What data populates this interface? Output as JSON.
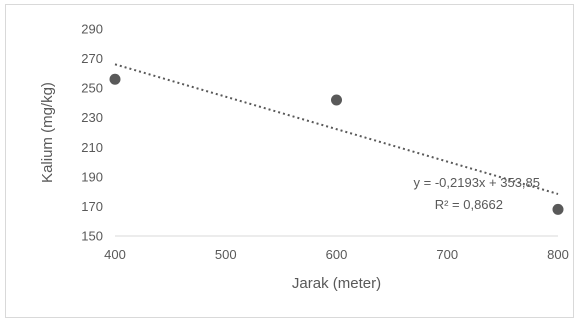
{
  "chart_data": {
    "type": "scatter",
    "title": "",
    "xlabel": "Jarak (meter)",
    "ylabel": "Kalium (mg/kg)",
    "xlim": [
      400,
      800
    ],
    "ylim": [
      150,
      290
    ],
    "x_ticks": [
      "400",
      "500",
      "600",
      "700",
      "800"
    ],
    "y_ticks": [
      "150",
      "170",
      "190",
      "210",
      "230",
      "250",
      "270",
      "290"
    ],
    "grid": "none",
    "legend": "none",
    "series": [
      {
        "points": [
          {
            "x": 400,
            "y": 256
          },
          {
            "x": 600,
            "y": 242
          },
          {
            "x": 800,
            "y": 168
          }
        ],
        "color": "#595959"
      }
    ],
    "trendline": {
      "type": "linear",
      "style": "dotted",
      "slope": -0.2193,
      "intercept": 353.85,
      "equation": "y = -0,2193x + 353,85",
      "r_squared": "R² = 0,8662",
      "color": "#595959"
    }
  }
}
